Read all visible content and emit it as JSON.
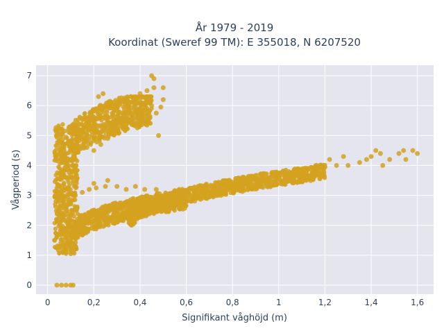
{
  "colors": {
    "background": "#ffffff",
    "plot_bg": "#e5e5f0",
    "grid": "#ffffff",
    "marker": "#d4a21e",
    "text": "#2a3f5f"
  },
  "chart_data": {
    "type": "scatter",
    "title": "År 1979 - 2019",
    "subtitle": "Koordinat (Sweref 99 TM): E 355018, N 6207520",
    "xlabel": "Signifikant våghöjd (m)",
    "ylabel": "Vågperiod (s)",
    "xlim": [
      -0.05,
      1.67
    ],
    "ylim": [
      -0.3,
      7.35
    ],
    "x_ticks": [
      0,
      0.2,
      0.4,
      0.6,
      0.8,
      1,
      1.2,
      1.4,
      1.6
    ],
    "x_tick_labels": [
      "0",
      "0,2",
      "0,4",
      "0,6",
      "0,8",
      "1",
      "1,2",
      "1,4",
      "1,6"
    ],
    "y_ticks": [
      0,
      1,
      2,
      3,
      4,
      5,
      6,
      7
    ],
    "y_tick_labels": [
      "0",
      "1",
      "2",
      "3",
      "4",
      "5",
      "6",
      "7"
    ],
    "grid": true,
    "legend": "none",
    "series": [
      {
        "points": [
          [
            0.04,
            0.0
          ],
          [
            0.06,
            0.0
          ],
          [
            0.08,
            0.0
          ],
          [
            0.1,
            0.0
          ],
          [
            0.11,
            0.0
          ],
          [
            0.03,
            1.5
          ],
          [
            0.05,
            1.3
          ],
          [
            0.06,
            1.8
          ],
          [
            0.07,
            2.2
          ],
          [
            0.05,
            2.6
          ],
          [
            0.06,
            3.0
          ],
          [
            0.05,
            3.3
          ],
          [
            0.07,
            3.7
          ],
          [
            0.06,
            4.1
          ],
          [
            0.05,
            2.8
          ],
          [
            0.08,
            1.1
          ],
          [
            0.09,
            1.4
          ],
          [
            0.08,
            1.8
          ],
          [
            0.09,
            2.3
          ],
          [
            0.08,
            2.7
          ],
          [
            0.09,
            3.2
          ],
          [
            0.08,
            3.6
          ],
          [
            0.09,
            4.0
          ],
          [
            0.08,
            4.4
          ],
          [
            0.09,
            4.8
          ],
          [
            0.1,
            5.2
          ],
          [
            0.1,
            1.05
          ],
          [
            0.11,
            3.0
          ],
          [
            0.12,
            4.6
          ],
          [
            0.12,
            1.3
          ],
          [
            0.13,
            1.6
          ],
          [
            0.15,
            1.7
          ],
          [
            0.17,
            1.8
          ],
          [
            0.19,
            1.9
          ],
          [
            0.21,
            2.0
          ],
          [
            0.23,
            2.05
          ],
          [
            0.25,
            2.1
          ],
          [
            0.27,
            2.15
          ],
          [
            0.29,
            2.2
          ],
          [
            0.31,
            2.25
          ],
          [
            0.33,
            2.3
          ],
          [
            0.14,
            2.3
          ],
          [
            0.18,
            2.4
          ],
          [
            0.22,
            2.5
          ],
          [
            0.26,
            2.6
          ],
          [
            0.3,
            2.7
          ],
          [
            0.35,
            2.8
          ],
          [
            0.4,
            2.6
          ],
          [
            0.45,
            2.7
          ],
          [
            0.5,
            2.8
          ],
          [
            0.55,
            2.9
          ],
          [
            0.6,
            3.0
          ],
          [
            0.65,
            3.1
          ],
          [
            0.7,
            3.2
          ],
          [
            0.75,
            3.3
          ],
          [
            0.8,
            3.4
          ],
          [
            0.85,
            3.5
          ],
          [
            0.9,
            3.55
          ],
          [
            0.95,
            3.6
          ],
          [
            1.0,
            3.7
          ],
          [
            1.05,
            3.75
          ],
          [
            1.1,
            3.8
          ],
          [
            1.15,
            3.9
          ],
          [
            1.2,
            3.95
          ],
          [
            1.25,
            4.0
          ],
          [
            1.3,
            4.0
          ],
          [
            1.35,
            4.1
          ],
          [
            1.38,
            4.2
          ],
          [
            1.4,
            4.3
          ],
          [
            1.42,
            4.5
          ],
          [
            1.44,
            4.4
          ],
          [
            1.48,
            4.2
          ],
          [
            1.52,
            4.4
          ],
          [
            1.54,
            4.5
          ],
          [
            1.58,
            4.5
          ],
          [
            1.6,
            4.4
          ],
          [
            1.55,
            4.2
          ],
          [
            1.45,
            4.0
          ],
          [
            1.28,
            4.3
          ],
          [
            1.22,
            4.2
          ],
          [
            0.12,
            3.0
          ],
          [
            0.15,
            3.1
          ],
          [
            0.18,
            3.2
          ],
          [
            0.21,
            3.25
          ],
          [
            0.25,
            3.3
          ],
          [
            0.3,
            3.3
          ],
          [
            0.34,
            3.2
          ],
          [
            0.38,
            3.3
          ],
          [
            0.42,
            3.2
          ],
          [
            0.47,
            3.2
          ],
          [
            0.2,
            3.4
          ],
          [
            0.26,
            3.5
          ],
          [
            0.11,
            3.8
          ],
          [
            0.12,
            4.2
          ],
          [
            0.13,
            4.5
          ],
          [
            0.14,
            4.9
          ],
          [
            0.15,
            5.2
          ],
          [
            0.17,
            5.5
          ],
          [
            0.19,
            5.7
          ],
          [
            0.21,
            5.85
          ],
          [
            0.24,
            5.9
          ],
          [
            0.27,
            6.0
          ],
          [
            0.3,
            6.1
          ],
          [
            0.33,
            6.2
          ],
          [
            0.36,
            6.3
          ],
          [
            0.4,
            6.4
          ],
          [
            0.43,
            6.5
          ],
          [
            0.46,
            6.6
          ],
          [
            0.5,
            6.6
          ],
          [
            0.49,
            5.95
          ],
          [
            0.45,
            6.0
          ],
          [
            0.42,
            5.85
          ],
          [
            0.38,
            5.7
          ],
          [
            0.35,
            5.5
          ],
          [
            0.32,
            5.3
          ],
          [
            0.29,
            5.1
          ],
          [
            0.26,
            4.9
          ],
          [
            0.23,
            4.7
          ],
          [
            0.2,
            4.5
          ],
          [
            0.17,
            4.6
          ],
          [
            0.25,
            5.3
          ],
          [
            0.3,
            5.6
          ],
          [
            0.35,
            6.0
          ],
          [
            0.4,
            6.05
          ],
          [
            0.44,
            6.1
          ],
          [
            0.48,
            5.0
          ],
          [
            0.22,
            6.3
          ],
          [
            0.24,
            6.4
          ],
          [
            0.46,
            6.9
          ],
          [
            0.45,
            7.0
          ],
          [
            0.5,
            6.2
          ],
          [
            0.47,
            5.75
          ]
        ]
      }
    ],
    "dense_regions": [
      {
        "x_range": [
          0.03,
          0.13
        ],
        "y_range": [
          1.05,
          5.4
        ]
      },
      {
        "x_range": [
          0.1,
          0.45
        ],
        "y_range": [
          4.4,
          6.3
        ]
      },
      {
        "x_range": [
          0.1,
          0.6
        ],
        "y_range": [
          1.4,
          3.2
        ]
      },
      {
        "x_range": [
          0.35,
          1.2
        ],
        "y_range": [
          2.3,
          4.0
        ]
      }
    ]
  }
}
